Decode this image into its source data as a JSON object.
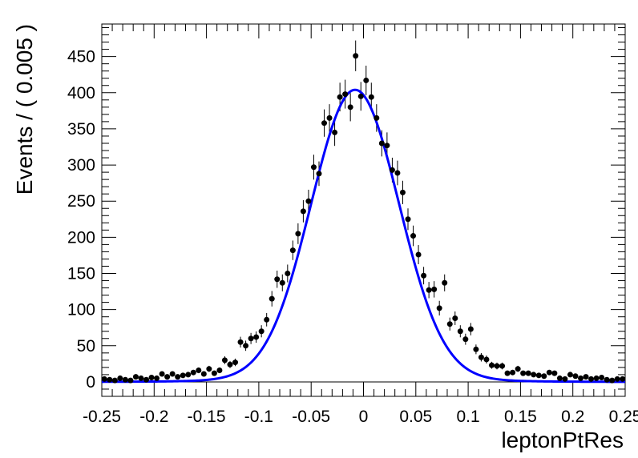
{
  "chart_data": {
    "type": "scatter",
    "xlabel": "leptonPtRes",
    "ylabel": "Events / ( 0.005 )",
    "xlim": [
      -0.25,
      0.25
    ],
    "ylim": [
      -20,
      495
    ],
    "xticks": [
      -0.25,
      -0.2,
      -0.15,
      -0.1,
      -0.05,
      0,
      0.05,
      0.1,
      0.15,
      0.2,
      0.25
    ],
    "xtick_labels": [
      "-0.25",
      "-0.2",
      "-0.15",
      "-0.1",
      "-0.05",
      "0",
      "0.05",
      "0.1",
      "0.15",
      "0.2",
      "0.25"
    ],
    "yticks": [
      0,
      50,
      100,
      150,
      200,
      250,
      300,
      350,
      400,
      450
    ],
    "ytick_labels": [
      "0",
      "50",
      "100",
      "150",
      "200",
      "250",
      "300",
      "350",
      "400",
      "450"
    ],
    "bin_width": 0.005,
    "grid": false,
    "legend": "none",
    "marker_color": "#000000",
    "fit_color": "#0000ff",
    "series": [
      {
        "kind": "data-points",
        "x": [
          -0.2475,
          -0.2425,
          -0.2375,
          -0.2325,
          -0.2275,
          -0.2225,
          -0.2175,
          -0.2125,
          -0.2075,
          -0.2025,
          -0.1975,
          -0.1925,
          -0.1875,
          -0.1825,
          -0.1775,
          -0.1725,
          -0.1675,
          -0.1625,
          -0.1575,
          -0.1525,
          -0.1475,
          -0.1425,
          -0.1375,
          -0.1325,
          -0.1275,
          -0.1225,
          -0.1175,
          -0.1125,
          -0.1075,
          -0.1025,
          -0.0975,
          -0.0925,
          -0.0875,
          -0.0825,
          -0.0775,
          -0.0725,
          -0.0675,
          -0.0625,
          -0.0575,
          -0.0525,
          -0.0475,
          -0.0425,
          -0.0375,
          -0.0325,
          -0.0275,
          -0.0225,
          -0.0175,
          -0.0125,
          -0.0075,
          -0.0025,
          0.0025,
          0.0075,
          0.0125,
          0.0175,
          0.0225,
          0.0275,
          0.0325,
          0.0375,
          0.0425,
          0.0475,
          0.0525,
          0.0575,
          0.0625,
          0.0675,
          0.0725,
          0.0775,
          0.0825,
          0.0875,
          0.0925,
          0.0975,
          0.1025,
          0.1075,
          0.1125,
          0.1175,
          0.1225,
          0.1275,
          0.1325,
          0.1375,
          0.1425,
          0.1475,
          0.1525,
          0.1575,
          0.1625,
          0.1675,
          0.1725,
          0.1775,
          0.1825,
          0.1875,
          0.1925,
          0.1975,
          0.2025,
          0.2075,
          0.2125,
          0.2175,
          0.2225,
          0.2275,
          0.2325,
          0.2375,
          0.2425,
          0.2475
        ],
        "y": [
          4,
          3,
          2,
          5,
          3,
          2,
          7,
          5,
          3,
          6,
          5,
          11,
          7,
          11,
          7,
          9,
          10,
          13,
          16,
          11,
          18,
          12,
          16,
          30,
          24,
          27,
          55,
          50,
          60,
          62,
          70,
          86,
          115,
          142,
          137,
          150,
          182,
          205,
          236,
          250,
          297,
          288,
          358,
          365,
          345,
          394,
          398,
          380,
          451,
          395,
          417,
          394,
          365,
          330,
          327,
          293,
          289,
          262,
          225,
          202,
          176,
          147,
          127,
          128,
          102,
          137,
          80,
          88,
          70,
          59,
          73,
          45,
          34,
          31,
          23,
          22,
          22,
          12,
          13,
          18,
          12,
          12,
          10,
          9,
          8,
          13,
          12,
          5,
          4,
          10,
          8,
          5,
          7,
          4,
          5,
          6,
          3,
          2,
          4,
          4
        ]
      },
      {
        "kind": "fit-curve",
        "peak": 404,
        "mean": -0.008,
        "sigma_core": 0.042,
        "tail": 0.012,
        "tail_sigma": 0.09
      }
    ]
  }
}
